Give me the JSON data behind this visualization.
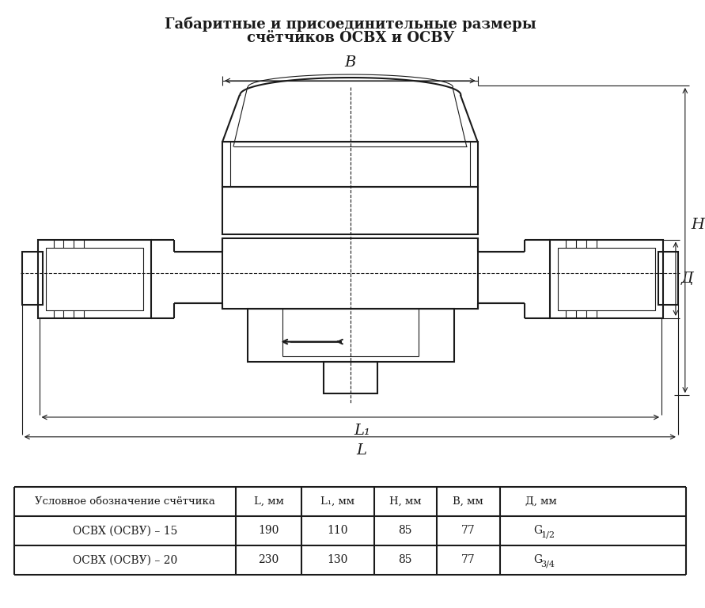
{
  "title_line1": "Габаритные и присоединительные размеры",
  "title_line2": "счётчиков ОСВХ и ОСВУ",
  "bg_color": "#ffffff",
  "line_color": "#1a1a1a",
  "table_headers": [
    "Условное обозначение счётчика",
    "L, мм",
    "L₁, мм",
    "H, мм",
    "B, мм",
    "Д, мм"
  ],
  "table_rows": [
    [
      "ОСВХ (ОСВУ) – 15",
      "190",
      "110",
      "85",
      "77",
      "G 1/2"
    ],
    [
      "ОСВХ (ОСВУ) – 20",
      "230",
      "130",
      "85",
      "77",
      "G 3/4"
    ]
  ],
  "dim_labels": {
    "B": "B",
    "H": "H",
    "D": "Д",
    "L1": "L₁",
    "L": "L"
  }
}
